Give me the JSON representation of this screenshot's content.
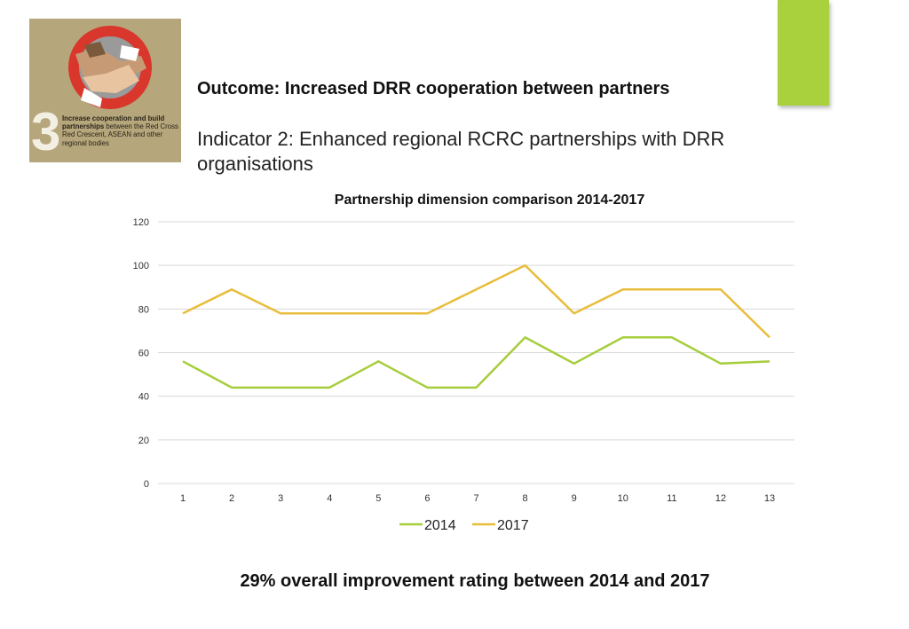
{
  "logo": {
    "number": "3",
    "text_bold": "Increase cooperation and build partnerships",
    "text_rest": " between the Red Cross Red Crescent, ASEAN and other regional bodies"
  },
  "header": {
    "outcome": "Outcome: Increased DRR cooperation between partners",
    "indicator": "Indicator 2: Enhanced regional RCRC partnerships with DRR organisations"
  },
  "footer": {
    "summary": "29% overall improvement rating between 2014 and 2017"
  },
  "colors": {
    "accent_bar": "#a9d13e",
    "series_2014": "#a6cd3c",
    "series_2017": "#e8bd3c",
    "grid": "#d9d9d9"
  },
  "chart_data": {
    "type": "line",
    "title": "Partnership dimension comparison 2014-2017",
    "categories": [
      "1",
      "2",
      "3",
      "4",
      "5",
      "6",
      "7",
      "8",
      "9",
      "10",
      "11",
      "12",
      "13"
    ],
    "series": [
      {
        "name": "2014",
        "values": [
          56,
          44,
          44,
          44,
          56,
          44,
          44,
          67,
          55,
          67,
          67,
          55,
          56
        ]
      },
      {
        "name": "2017",
        "values": [
          78,
          89,
          78,
          78,
          78,
          78,
          89,
          100,
          78,
          89,
          89,
          89,
          67
        ]
      }
    ],
    "yticks": [
      "0",
      "20",
      "40",
      "60",
      "80",
      "100",
      "120"
    ],
    "ylim": [
      0,
      120
    ],
    "grid": true,
    "legend": "bottom"
  }
}
